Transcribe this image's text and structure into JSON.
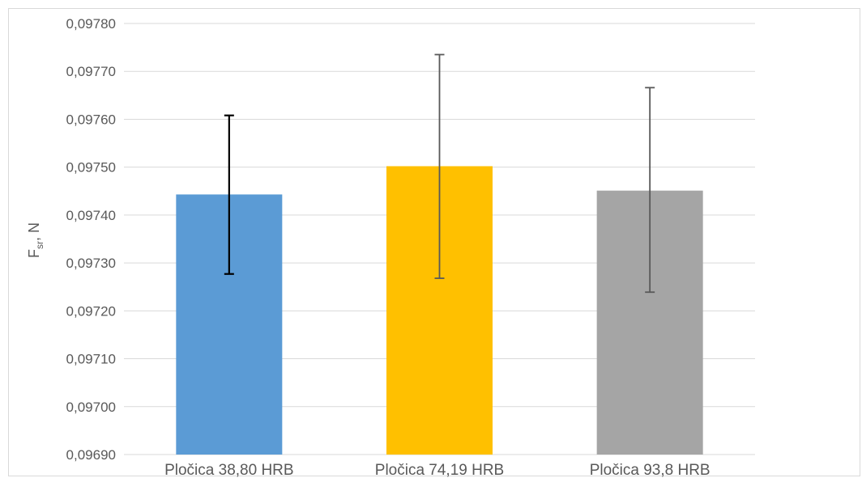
{
  "chart_data": {
    "type": "bar",
    "categories": [
      "Pločica 38,80 HRB",
      "Pločica 74,19 HRB",
      "Pločica 93,8 HRB"
    ],
    "values": [
      0.097443,
      0.097502,
      0.097451
    ],
    "error_bars": [
      {
        "low": 0.097277,
        "high": 0.097608
      },
      {
        "low": 0.097268,
        "high": 0.097735
      },
      {
        "low": 0.097239,
        "high": 0.097666
      }
    ],
    "bar_colors": [
      "#5b9bd5",
      "#ffc000",
      "#a5a5a5"
    ],
    "error_bar_colors": [
      "#000000",
      "#595959",
      "#595959"
    ],
    "ylim": [
      0.0969,
      0.0978
    ],
    "yticks": [
      0.0969,
      0.097,
      0.0971,
      0.0972,
      0.0973,
      0.0974,
      0.0975,
      0.0976,
      0.0977,
      0.0978
    ],
    "ytick_labels": [
      "0,09690",
      "0,09700",
      "0,09710",
      "0,09720",
      "0,09730",
      "0,09740",
      "0,09750",
      "0,09760",
      "0,09770",
      "0,09780"
    ],
    "ylabel_main": "F",
    "ylabel_sub": "sr",
    "ylabel_rest": ", N",
    "xlabel": "",
    "title": "",
    "grid": true,
    "gridline_color": "#d9d9d9"
  }
}
